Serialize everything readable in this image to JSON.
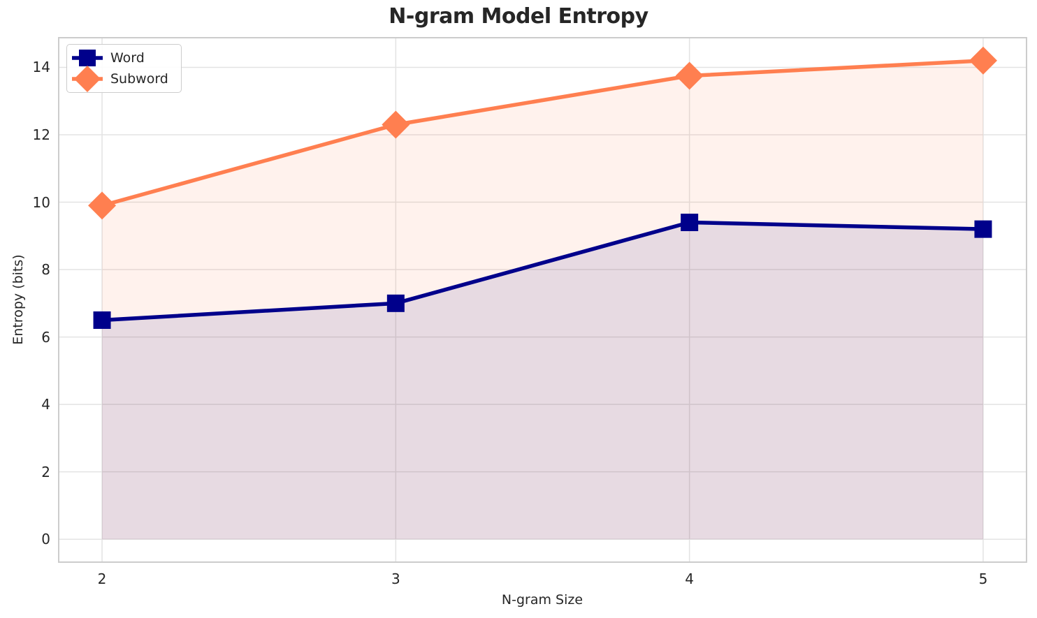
{
  "chart_data": {
    "type": "line",
    "title": "N-gram Model Entropy",
    "xlabel": "N-gram Size",
    "ylabel": "Entropy (bits)",
    "x": [
      2,
      3,
      4,
      5
    ],
    "series": [
      {
        "name": "Word",
        "values": [
          6.5,
          7.0,
          9.4,
          9.2
        ],
        "color": "#00008b",
        "marker": "square",
        "fill_below": true,
        "fill_opacity": 0.1
      },
      {
        "name": "Subword",
        "values": [
          9.9,
          12.3,
          13.75,
          14.2
        ],
        "color": "#ff7f50",
        "marker": "diamond",
        "fill_below": true,
        "fill_opacity": 0.1
      }
    ],
    "xticks": [
      2,
      3,
      4,
      5
    ],
    "yticks": [
      0,
      2,
      4,
      6,
      8,
      10,
      12,
      14
    ],
    "xlim": [
      1.85,
      5.15
    ],
    "ylim": [
      -0.7,
      14.9
    ],
    "fill_baseline": 0,
    "grid": true,
    "legend_position": "upper-left",
    "colors": {
      "grid": "#e3e3e3",
      "spine": "#cccccc",
      "text": "#262626",
      "background": "#ffffff"
    }
  }
}
